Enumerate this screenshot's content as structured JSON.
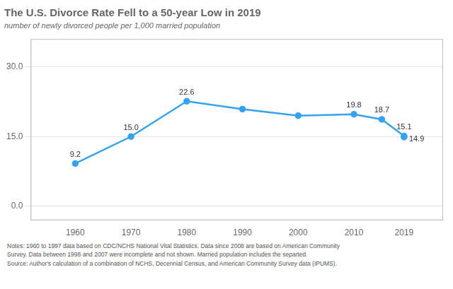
{
  "chart_data": {
    "type": "line",
    "title": "The U.S. Divorce Rate Fell to a 50-year Low in 2019",
    "subtitle": "number of newly divorced people per 1,000 married population",
    "x": [
      1960,
      1970,
      1980,
      1990,
      2000,
      2010,
      2015,
      2019
    ],
    "series": [
      {
        "values": [
          9.2,
          15.0,
          22.6,
          20.9,
          19.5,
          19.8,
          18.7,
          15.1
        ],
        "value_labels": [
          "9.2",
          "15.0",
          "22.6",
          null,
          null,
          "19.8",
          "18.7",
          "15.1"
        ],
        "color": "#36a2eb",
        "marker": "circle",
        "line_style": "solid"
      },
      {
        "type": "scatter",
        "x": [
          2019
        ],
        "values": [
          14.9
        ],
        "value_labels": [
          "14.9"
        ],
        "color": "#36a2eb",
        "marker": "circle"
      }
    ],
    "xlim": [
      1952,
      2026
    ],
    "xticks": [
      1960,
      1970,
      1980,
      1990,
      2000,
      2010,
      2019
    ],
    "ylim": [
      -3,
      36
    ],
    "yticks": [
      {
        "value": 0,
        "label": "0.0"
      },
      {
        "value": 15,
        "label": "15.0"
      },
      {
        "value": 30,
        "label": "30.0"
      }
    ],
    "grid": "y",
    "data_labels": true,
    "notes": [
      "Notes: 1960 to 1997 data based on CDC/NCHS National Vital Statistics. Data since 2008 are based on American Community",
      "Survey. Data between 1998 and 2007 were incomplete and not shown. Married population includes the separted.",
      "Source: Author's calculation of a combination of NCHS, Decennial Census, and American Community Survey data (IPUMS)."
    ]
  }
}
